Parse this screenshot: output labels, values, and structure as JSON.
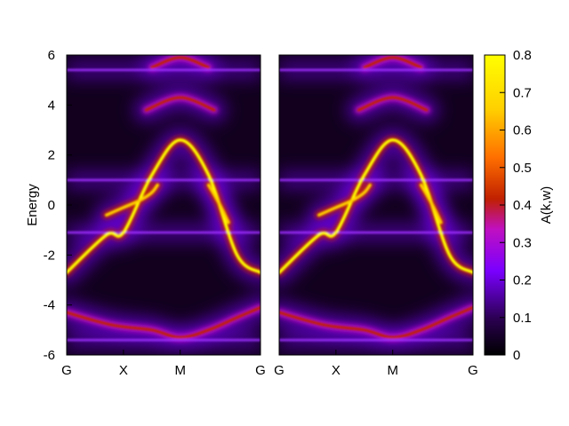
{
  "chart_data": {
    "type": "heatmap",
    "title": "",
    "ylabel": "Energy",
    "ylim": [
      -6,
      6
    ],
    "yticks": [
      "-6",
      "-4",
      "-2",
      "0",
      "2",
      "4",
      "6"
    ],
    "colorbar": {
      "label": "A(k,w)",
      "range": [
        0,
        0.8
      ],
      "ticks": [
        "0",
        "0.1",
        "0.2",
        "0.3",
        "0.4",
        "0.5",
        "0.6",
        "0.7",
        "0.8"
      ],
      "colormap": [
        "#000000",
        "#2a0050",
        "#7a00ff",
        "#c010c0",
        "#c02000",
        "#ff7000",
        "#ffd000",
        "#ffff00"
      ]
    },
    "panels": [
      {
        "name": "left",
        "kpath": [
          "G",
          "X",
          "M",
          "G"
        ],
        "kpath_positions": [
          0,
          1,
          2,
          3.414
        ]
      },
      {
        "name": "right",
        "kpath": [
          "G",
          "X",
          "M",
          "G"
        ],
        "kpath_positions": [
          0,
          1,
          2,
          3.414
        ]
      }
    ],
    "flat_bands": [
      5.4,
      1.0,
      -1.1,
      -5.4
    ],
    "dispersive_bands": [
      {
        "segments": [
          {
            "k": [
              0.0,
              0.7,
              1.0,
              1.5,
              2.0,
              2.5,
              3.0,
              3.414
            ],
            "e": [
              -2.7,
              -1.2,
              -1.1,
              1.2,
              2.6,
              1.2,
              -2.0,
              -2.7
            ]
          }
        ],
        "peak_weight": 0.8
      },
      {
        "segments": [
          {
            "k": [
              0.7,
              1.0,
              1.3,
              1.5,
              1.6
            ],
            "e": [
              -0.4,
              -0.1,
              0.2,
              0.5,
              0.8
            ]
          },
          {
            "k": [
              2.5,
              2.7,
              2.85
            ],
            "e": [
              0.8,
              0.0,
              -0.7
            ]
          }
        ],
        "peak_weight": 0.6
      },
      {
        "segments": [
          {
            "k": [
              1.4,
              2.0,
              2.6
            ],
            "e": [
              3.8,
              4.3,
              3.8
            ]
          }
        ],
        "peak_weight": 0.35
      },
      {
        "segments": [
          {
            "k": [
              1.5,
              2.0,
              2.5
            ],
            "e": [
              5.5,
              5.9,
              5.5
            ]
          }
        ],
        "peak_weight": 0.35
      },
      {
        "segments": [
          {
            "k": [
              0.0,
              0.8,
              1.5,
              2.0,
              2.5,
              3.0,
              3.414
            ],
            "e": [
              -4.3,
              -4.8,
              -5.0,
              -5.3,
              -5.0,
              -4.5,
              -4.1
            ]
          }
        ],
        "peak_weight": 0.35
      }
    ],
    "grid": false,
    "legend": "none"
  }
}
